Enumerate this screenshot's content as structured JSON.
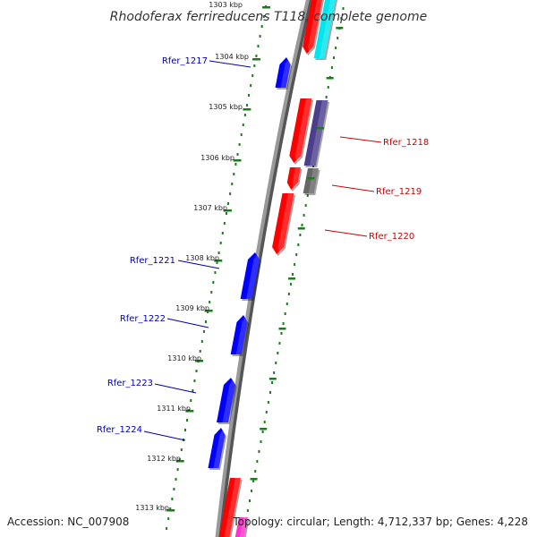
{
  "title": "Rhodoferax ferrireducens T118, complete genome",
  "accession_text": "Accession: NC_007908",
  "topology_text": "Topology: circular; Length: 4,712,337 bp; Genes: 4,228",
  "colors": {
    "backbone": "#888888",
    "tick": "#1f7a1f",
    "forward_gene": "#ff0000",
    "reverse_gene": "#0000ff",
    "forward_label": "#cc0000",
    "reverse_label": "#0000aa",
    "cyan_track": "#00e5ee",
    "purple_track": "#4b3f8c",
    "gray_track": "#666666",
    "magenta_track": "#ff33cc"
  },
  "tick_labels": [
    "1303 kbp",
    "1304 kbp",
    "1305 kbp",
    "1306 kbp",
    "1307 kbp",
    "1308 kbp",
    "1309 kbp",
    "1310 kbp",
    "1311 kbp",
    "1312 kbp",
    "1313 kbp"
  ],
  "forward_genes": [
    "Rfer_1218",
    "Rfer_1219",
    "Rfer_1220"
  ],
  "reverse_genes": [
    "Rfer_1217",
    "Rfer_1221",
    "Rfer_1222",
    "Rfer_1223",
    "Rfer_1224"
  ]
}
